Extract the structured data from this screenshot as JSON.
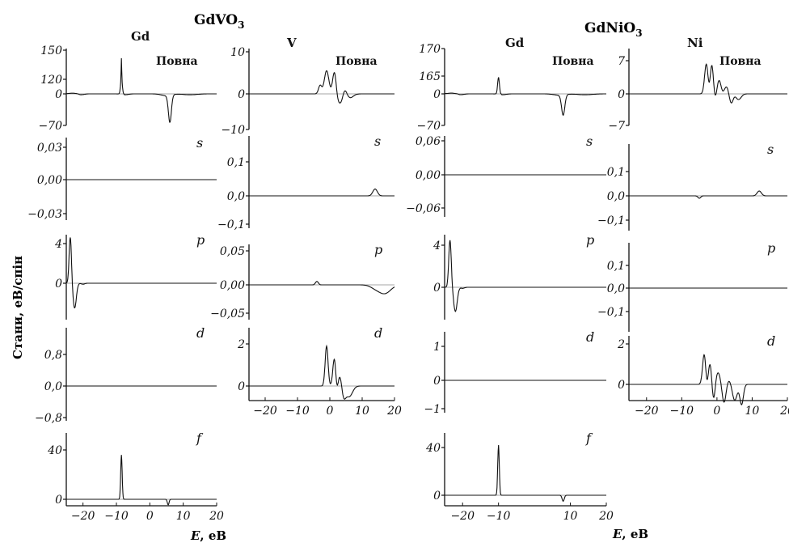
{
  "figure": {
    "compound_left": "GdVO",
    "compound_left_sub": "3",
    "compound_right": "GdNiO",
    "compound_right_sub": "3",
    "ylabel": "Стани, еВ/спін",
    "xlabel_left": "E, еВ",
    "xlabel_right": "E, еВ",
    "colors": {
      "line": "#111111",
      "background": "#ffffff"
    }
  },
  "chart_data": [
    {
      "id": "gdvo3-gd-total",
      "type": "line",
      "atom": "Gd",
      "label": "Повна",
      "yticks": [
        "150",
        "120",
        "0",
        "-70"
      ],
      "ylim": [
        -70,
        150
      ],
      "xlim": [
        -25,
        20
      ],
      "peaks": [
        [
          -23,
          6,
          1.2
        ],
        [
          -21,
          -3,
          1.0
        ],
        [
          -8.5,
          143,
          0.25
        ],
        [
          -7.5,
          -2,
          1
        ],
        [
          5,
          -4,
          1.5
        ],
        [
          6,
          -60,
          0.45
        ],
        [
          12,
          -2,
          2
        ]
      ]
    },
    {
      "id": "gdvo3-gd-s",
      "type": "line",
      "atom": "",
      "label": "s",
      "yticks": [
        "0,03",
        "0,00",
        "-0,03"
      ],
      "ylim": [
        -0.04,
        0.04
      ],
      "xlim": [
        -25,
        20
      ],
      "peaks": [
        [
          -20.5,
          0.004,
          0.4
        ],
        [
          -20.5,
          -0.004,
          0.4
        ],
        [
          -6,
          0.01,
          0.7
        ],
        [
          -6,
          -0.01,
          0.7
        ],
        [
          -3.5,
          0.005,
          1
        ],
        [
          -3.5,
          -0.005,
          1
        ],
        [
          5,
          0.016,
          1.6
        ],
        [
          5,
          -0.016,
          1.6
        ],
        [
          9.5,
          0.028,
          1.2
        ],
        [
          9.5,
          -0.028,
          1.2
        ],
        [
          13,
          0.016,
          2
        ],
        [
          13,
          -0.016,
          2
        ]
      ]
    },
    {
      "id": "gdvo3-gd-p",
      "type": "line",
      "atom": "",
      "label": "p",
      "yticks": [
        "4",
        "0"
      ],
      "ylim": [
        -3.5,
        5
      ],
      "xlim": [
        -25,
        20
      ],
      "peaks": [
        [
          -23.8,
          4.7,
          0.35
        ],
        [
          -22.5,
          -2.5,
          0.5
        ],
        [
          -20,
          0.4,
          0.5
        ],
        [
          -20,
          -0.5,
          0.5
        ]
      ]
    },
    {
      "id": "gdvo3-gd-d",
      "type": "line",
      "atom": "",
      "label": "d",
      "yticks": [
        "0,8",
        "0,0",
        "-0,8"
      ],
      "ylim": [
        -1.0,
        1.1
      ],
      "xlim": [
        -25,
        20
      ],
      "peaks": [
        [
          -4,
          0.05,
          1
        ],
        [
          -4,
          -0.05,
          1
        ],
        [
          4,
          0.5,
          0.8
        ],
        [
          4,
          -0.5,
          0.8
        ],
        [
          5.5,
          0.95,
          0.5
        ],
        [
          5.5,
          -0.95,
          0.5
        ],
        [
          7,
          0.6,
          0.8
        ],
        [
          7,
          -0.6,
          0.8
        ],
        [
          12,
          0.07,
          3
        ],
        [
          12,
          -0.07,
          3
        ]
      ]
    },
    {
      "id": "gdvo3-gd-f",
      "type": "line",
      "atom": "",
      "label": "f",
      "yticks": [
        "40",
        "0"
      ],
      "ylim": [
        -5,
        45
      ],
      "xlim": [
        -25,
        20
      ],
      "xticks": [
        "-20",
        "-10",
        "0",
        "10",
        "20"
      ],
      "xtick_values": [
        -20,
        -10,
        0,
        10,
        20
      ],
      "peaks": [
        [
          -8.5,
          36,
          0.22
        ],
        [
          5.5,
          -4.5,
          0.25
        ]
      ]
    },
    {
      "id": "gdvo3-v-total",
      "type": "line",
      "atom": "V",
      "label": "Повна",
      "yticks": [
        "10",
        "0",
        "-10"
      ],
      "ylim": [
        -10,
        10
      ],
      "xlim": [
        -25,
        20
      ],
      "peaks": [
        [
          -20,
          0.2,
          0.5
        ],
        [
          -20,
          -0.2,
          0.5
        ],
        [
          -3,
          2,
          0.5
        ],
        [
          -1,
          7,
          0.7
        ],
        [
          1.5,
          8,
          0.6
        ],
        [
          4,
          4.5,
          1.3
        ],
        [
          -1,
          -1.5,
          0.7
        ],
        [
          2,
          -4.5,
          0.8
        ],
        [
          3.5,
          -5,
          0.7
        ],
        [
          5.5,
          -2.5,
          1.2
        ],
        [
          12,
          0.4,
          3
        ],
        [
          12,
          -0.4,
          3
        ]
      ]
    },
    {
      "id": "gdvo3-v-s",
      "type": "line",
      "atom": "",
      "label": "s",
      "yticks": [
        "0,1",
        "0,0",
        "-0,1"
      ],
      "ylim": [
        -0.12,
        0.15
      ],
      "xlim": [
        -25,
        20
      ],
      "peaks": [
        [
          -20,
          0.005,
          0.4
        ],
        [
          -20,
          -0.005,
          0.4
        ],
        [
          -4,
          0.1,
          0.3
        ],
        [
          -4,
          -0.1,
          0.3
        ],
        [
          8,
          0.02,
          2
        ],
        [
          8,
          -0.02,
          2
        ],
        [
          14,
          0.12,
          0.7
        ],
        [
          14,
          -0.1,
          0.7
        ],
        [
          17,
          0.015,
          1.5
        ],
        [
          17,
          -0.015,
          1.5
        ]
      ]
    },
    {
      "id": "gdvo3-v-p",
      "type": "line",
      "atom": "",
      "label": "p",
      "yticks": [
        "0,05",
        "0,00",
        "-0,05"
      ],
      "ylim": [
        -0.065,
        0.06
      ],
      "xlim": [
        -25,
        20
      ],
      "peaks": [
        [
          -21,
          0.025,
          0.45
        ],
        [
          -21,
          -0.025,
          0.45
        ],
        [
          -17,
          0.015,
          0.5
        ],
        [
          -17,
          -0.015,
          0.5
        ],
        [
          -4,
          0.045,
          0.45
        ],
        [
          -4,
          -0.04,
          0.45
        ],
        [
          3,
          0.01,
          2.5
        ],
        [
          3,
          -0.01,
          2.5
        ],
        [
          14,
          0.04,
          1.5
        ],
        [
          14,
          -0.045,
          1.5
        ],
        [
          17,
          0.03,
          1.8
        ],
        [
          17,
          -0.045,
          1.8
        ]
      ]
    },
    {
      "id": "gdvo3-v-d",
      "type": "line",
      "atom": "",
      "label": "d",
      "yticks": [
        "2",
        "0"
      ],
      "ylim": [
        -1.5,
        2.2
      ],
      "xlim": [
        -25,
        20
      ],
      "xticks": [
        "-20",
        "-10",
        "0",
        "10",
        "20"
      ],
      "xtick_values": [
        -20,
        -10,
        0,
        10,
        20
      ],
      "peaks": [
        [
          -4,
          0.3,
          0.6
        ],
        [
          -4,
          -0.3,
          0.6
        ],
        [
          -1,
          1.9,
          0.45
        ],
        [
          1.5,
          1.7,
          0.5
        ],
        [
          3.5,
          1.2,
          0.8
        ],
        [
          2,
          -0.9,
          0.5
        ],
        [
          4,
          -1.3,
          0.7
        ],
        [
          6,
          -0.5,
          1
        ],
        [
          14,
          0.08,
          3
        ],
        [
          14,
          -0.08,
          3
        ]
      ]
    },
    {
      "id": "gdnio3-gd-total",
      "type": "line",
      "atom": "Gd",
      "label": "Повна",
      "yticks": [
        "170",
        "165",
        "0",
        "-70"
      ],
      "ylim": [
        -70,
        170
      ],
      "xlim": [
        -25,
        20
      ],
      "peaks": [
        [
          -23,
          7,
          1.2
        ],
        [
          -21,
          -3,
          1.0
        ],
        [
          -10,
          155,
          0.25
        ],
        [
          -9,
          -2,
          1
        ],
        [
          7,
          -3,
          1.5
        ],
        [
          8,
          -45,
          0.45
        ],
        [
          14,
          -2,
          2
        ]
      ]
    },
    {
      "id": "gdnio3-gd-s",
      "type": "line",
      "atom": "",
      "label": "s",
      "yticks": [
        "0,06",
        "0,00",
        "-0,06"
      ],
      "ylim": [
        -0.07,
        0.065
      ],
      "xlim": [
        -25,
        20
      ],
      "peaks": [
        [
          -20.5,
          0.004,
          0.5
        ],
        [
          -20.5,
          -0.004,
          0.5
        ],
        [
          -6,
          0.009,
          0.7
        ],
        [
          -6,
          -0.009,
          0.7
        ],
        [
          -3,
          0.012,
          0.8
        ],
        [
          -3,
          -0.012,
          0.8
        ],
        [
          7,
          0.012,
          1.8
        ],
        [
          7,
          -0.012,
          1.8
        ],
        [
          12,
          0.045,
          0.9
        ],
        [
          12,
          -0.045,
          0.9
        ],
        [
          15,
          0.02,
          2
        ],
        [
          15,
          -0.02,
          2
        ]
      ]
    },
    {
      "id": "gdnio3-gd-p",
      "type": "line",
      "atom": "",
      "label": "p",
      "yticks": [
        "4",
        "0"
      ],
      "ylim": [
        -3.5,
        5
      ],
      "xlim": [
        -25,
        20
      ],
      "peaks": [
        [
          -23.5,
          4.5,
          0.35
        ],
        [
          -22,
          -2.3,
          0.5
        ],
        [
          -20,
          0.5,
          0.5
        ],
        [
          -20,
          -0.6,
          0.5
        ]
      ]
    },
    {
      "id": "gdnio3-gd-d",
      "type": "line",
      "atom": "",
      "label": "d",
      "yticks": [
        "1",
        "0",
        "-1"
      ],
      "ylim": [
        -1.3,
        1.4
      ],
      "xlim": [
        -25,
        20
      ],
      "peaks": [
        [
          -4,
          0.06,
          1
        ],
        [
          -4,
          -0.06,
          1
        ],
        [
          5,
          0.6,
          0.8
        ],
        [
          5,
          -0.6,
          0.8
        ],
        [
          7,
          1.1,
          0.5
        ],
        [
          7,
          -1.1,
          0.5
        ],
        [
          9,
          0.7,
          0.8
        ],
        [
          9,
          -0.7,
          0.8
        ],
        [
          14,
          0.1,
          3
        ],
        [
          14,
          -0.1,
          3
        ]
      ]
    },
    {
      "id": "gdnio3-gd-f",
      "type": "line",
      "atom": "",
      "label": "f",
      "yticks": [
        "40",
        "0"
      ],
      "ylim": [
        -5,
        45
      ],
      "xlim": [
        -25,
        20
      ],
      "xticks": [
        "-20",
        "-10",
        "10",
        "20"
      ],
      "xtick_values": [
        -20,
        -10,
        10,
        20
      ],
      "peaks": [
        [
          -10,
          42,
          0.22
        ],
        [
          8,
          -5,
          0.3
        ]
      ]
    },
    {
      "id": "gdnio3-ni-total",
      "type": "line",
      "atom": "Ni",
      "label": "Повна",
      "yticks": [
        "7",
        "0",
        "-7"
      ],
      "ylim": [
        -7,
        8.5
      ],
      "xlim": [
        -25,
        20
      ],
      "peaks": [
        [
          -3,
          6.5,
          0.5
        ],
        [
          -1.5,
          8,
          0.5
        ],
        [
          0.5,
          3.5,
          0.8
        ],
        [
          3,
          2,
          1.5
        ],
        [
          -2,
          -2.5,
          0.5
        ],
        [
          -0.5,
          -3,
          0.6
        ],
        [
          1.5,
          -2,
          0.6
        ],
        [
          4,
          -3.5,
          0.6
        ],
        [
          6,
          -1.5,
          0.8
        ],
        [
          12,
          0.3,
          3
        ],
        [
          12,
          -0.3,
          3
        ]
      ]
    },
    {
      "id": "gdnio3-ni-s",
      "type": "line",
      "atom": "",
      "label": "s",
      "yticks": [
        "0,1",
        "0,0",
        "-0,1"
      ],
      "ylim": [
        -0.13,
        0.15
      ],
      "xlim": [
        -25,
        20
      ],
      "peaks": [
        [
          -20,
          0.005,
          0.4
        ],
        [
          -20,
          -0.005,
          0.4
        ],
        [
          -5,
          0.05,
          0.4
        ],
        [
          -5,
          -0.06,
          0.4
        ],
        [
          0,
          0.03,
          1
        ],
        [
          0,
          -0.03,
          1
        ],
        [
          9,
          0.02,
          2
        ],
        [
          9,
          -0.02,
          2
        ],
        [
          12,
          0.13,
          0.6
        ],
        [
          12,
          -0.11,
          0.6
        ],
        [
          15,
          0.02,
          1.5
        ],
        [
          15,
          -0.02,
          1.5
        ]
      ]
    },
    {
      "id": "gdnio3-ni-p",
      "type": "line",
      "atom": "",
      "label": "p",
      "yticks": [
        "0,1",
        "0,0",
        "-0,1"
      ],
      "ylim": [
        -0.15,
        0.17
      ],
      "xlim": [
        -25,
        20
      ],
      "peaks": [
        [
          -20,
          0.02,
          0.4
        ],
        [
          -20,
          -0.02,
          0.4
        ],
        [
          -5,
          0.06,
          0.5
        ],
        [
          -5,
          -0.06,
          0.5
        ],
        [
          2,
          0.02,
          2.5
        ],
        [
          2,
          -0.02,
          2.5
        ],
        [
          15,
          0.12,
          1.3
        ],
        [
          15,
          -0.12,
          1.3
        ],
        [
          18,
          0.1,
          1.5
        ],
        [
          18,
          -0.1,
          1.5
        ]
      ]
    },
    {
      "id": "gdnio3-ni-d",
      "type": "line",
      "atom": "",
      "label": "d",
      "yticks": [
        "2",
        "0"
      ],
      "ylim": [
        -1.5,
        2.4
      ],
      "xlim": [
        -25,
        20
      ],
      "xticks": [
        "-20",
        "-10",
        "0",
        "10",
        "20"
      ],
      "xtick_values": [
        -20,
        -10,
        0,
        10,
        20
      ],
      "peaks": [
        [
          -3.5,
          2,
          0.5
        ],
        [
          -2,
          1.2,
          0.6
        ],
        [
          0,
          0.6,
          1
        ],
        [
          3,
          0.3,
          1.5
        ],
        [
          -3,
          -1.1,
          0.5
        ],
        [
          -1,
          -1.3,
          0.5
        ],
        [
          2,
          -1.2,
          0.6
        ],
        [
          5,
          -0.9,
          0.7
        ],
        [
          7,
          -1.0,
          0.5
        ],
        [
          14,
          0.05,
          3
        ],
        [
          14,
          -0.05,
          3
        ]
      ]
    }
  ]
}
